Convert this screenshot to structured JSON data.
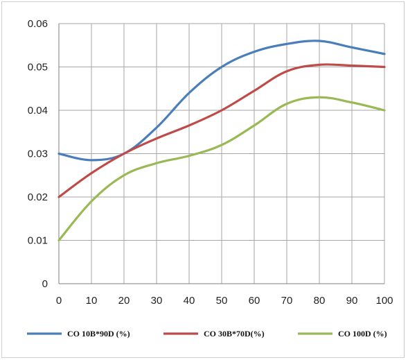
{
  "chart_data": {
    "type": "line",
    "title": "",
    "xlabel": "",
    "ylabel": "",
    "x": [
      0,
      10,
      20,
      30,
      40,
      50,
      60,
      70,
      80,
      90,
      100
    ],
    "xlim": [
      0,
      100
    ],
    "ylim": [
      0,
      0.06
    ],
    "x_ticks": [
      "0",
      "10",
      "20",
      "30",
      "40",
      "50",
      "60",
      "70",
      "80",
      "90",
      "100"
    ],
    "y_ticks": [
      "0",
      "0.01",
      "0.02",
      "0.03",
      "0.04",
      "0.05",
      "0.06"
    ],
    "grid": true,
    "legend_position": "bottom",
    "series": [
      {
        "name": "CO 10B*90D (%)",
        "color": "#4a7ebb",
        "values": [
          0.03,
          0.0285,
          0.03,
          0.036,
          0.044,
          0.05,
          0.0535,
          0.0553,
          0.056,
          0.0545,
          0.053
        ]
      },
      {
        "name": "CO 30B*70D(%)",
        "color": "#be4b48",
        "values": [
          0.02,
          0.0255,
          0.03,
          0.0335,
          0.0365,
          0.04,
          0.0445,
          0.049,
          0.0505,
          0.0503,
          0.05
        ]
      },
      {
        "name": "CO 100D (%)",
        "color": "#98b954",
        "values": [
          0.01,
          0.019,
          0.025,
          0.0278,
          0.0295,
          0.032,
          0.0365,
          0.0415,
          0.043,
          0.0418,
          0.04
        ]
      }
    ]
  }
}
